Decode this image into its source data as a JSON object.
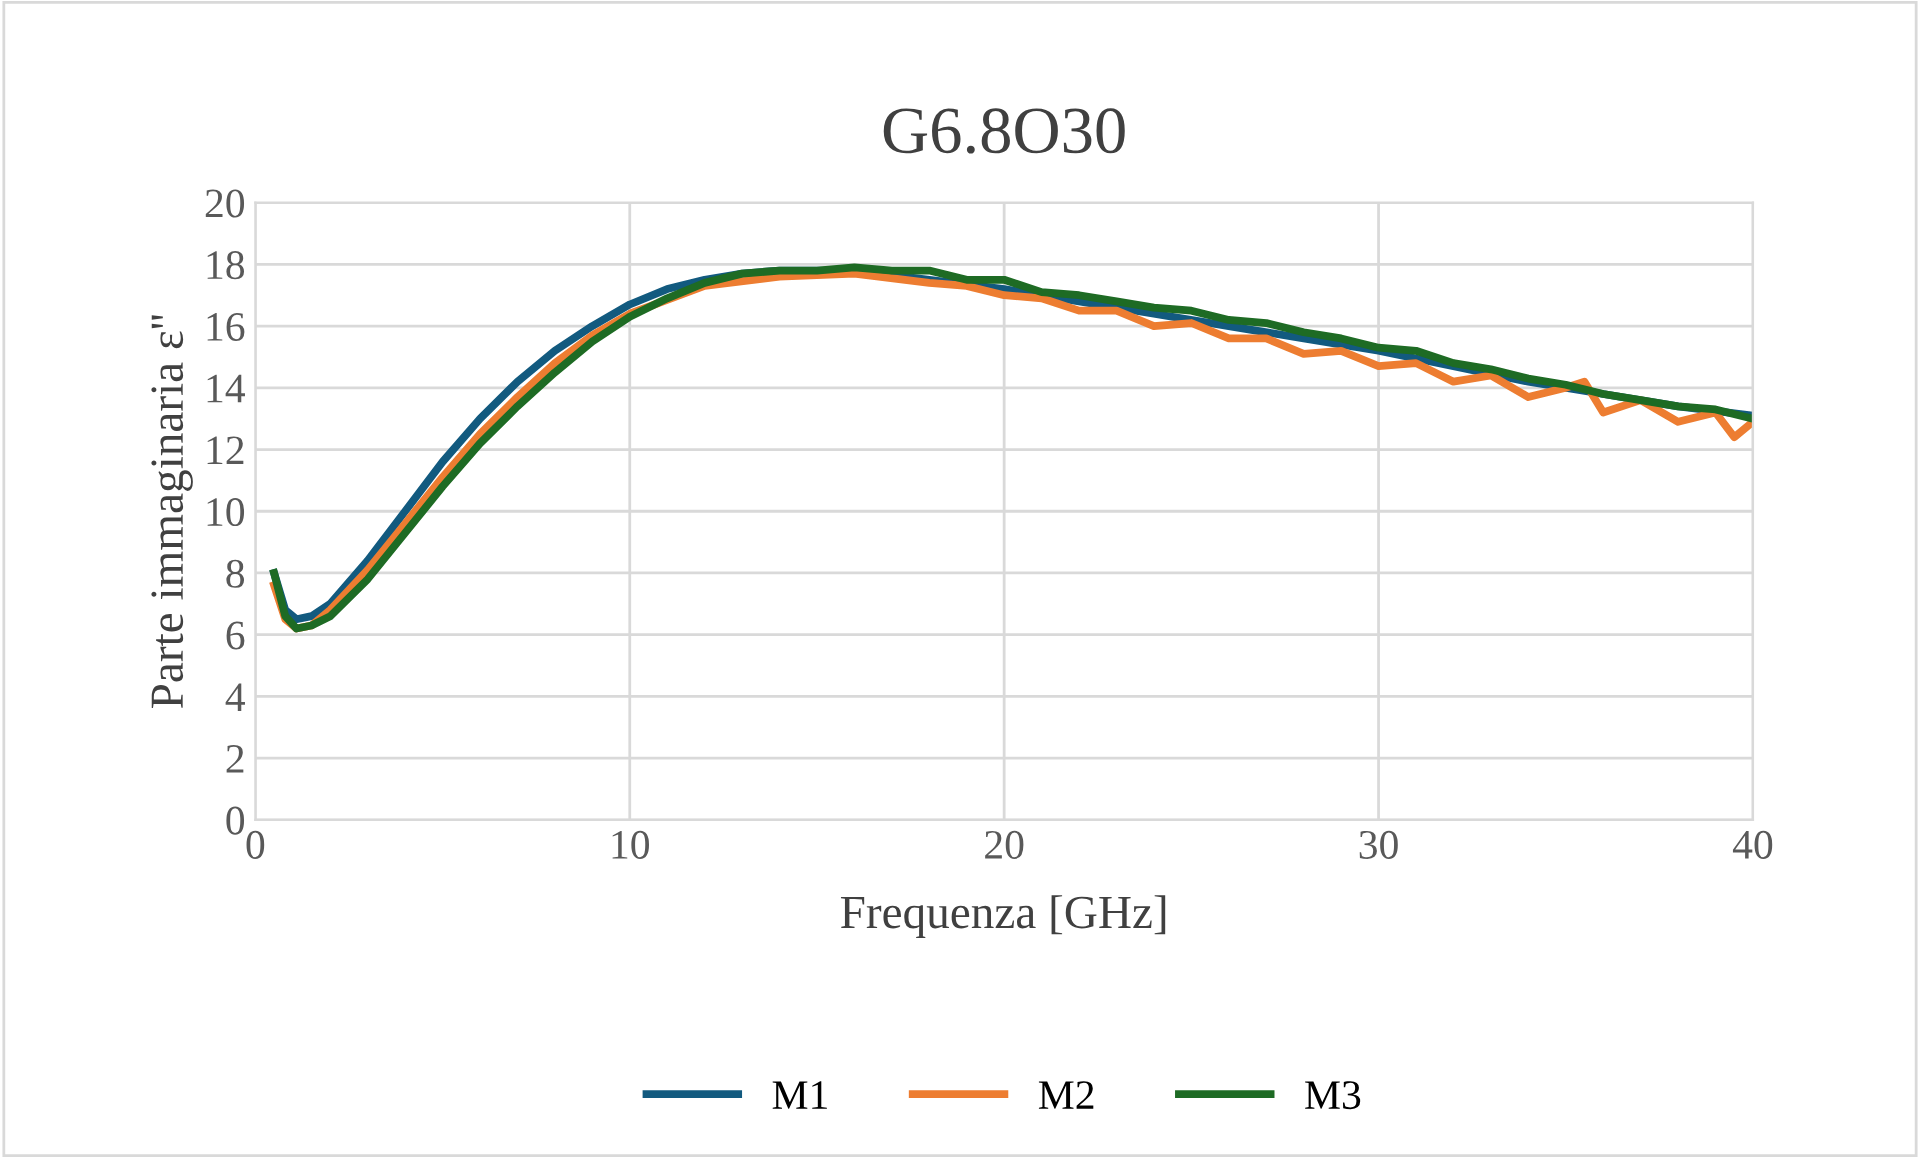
{
  "chart_data": {
    "type": "line",
    "title": "G6.8O30",
    "xlabel": "Frequenza [GHz]",
    "ylabel": "Parte immaginaria ε''",
    "xlim": [
      0,
      40
    ],
    "xticks": [
      0,
      10,
      20,
      30,
      40
    ],
    "ylim": [
      0,
      20
    ],
    "yticks": [
      0,
      2,
      4,
      6,
      8,
      10,
      12,
      14,
      16,
      18,
      20
    ],
    "grid": true,
    "legend": "bottom",
    "marker": "none",
    "line_style": "solid",
    "series": [
      {
        "name": "M1",
        "color": "#125a7f",
        "x": [
          0.5,
          0.8,
          1.1,
          1.5,
          2,
          3,
          4,
          5,
          6,
          7,
          8,
          9,
          10,
          11,
          12,
          13,
          14,
          16,
          18,
          20,
          22,
          24,
          26,
          28,
          30,
          32,
          34,
          36,
          38,
          40
        ],
        "values": [
          8.0,
          6.8,
          6.5,
          6.6,
          7.0,
          8.4,
          10.0,
          11.6,
          13.0,
          14.2,
          15.2,
          16.0,
          16.7,
          17.2,
          17.5,
          17.7,
          17.8,
          17.8,
          17.5,
          17.2,
          16.8,
          16.4,
          16.0,
          15.6,
          15.2,
          14.7,
          14.2,
          13.8,
          13.4,
          13.1
        ]
      },
      {
        "name": "M2",
        "color": "#ed7d31",
        "x": [
          0.5,
          0.8,
          1.1,
          1.5,
          2,
          3,
          4,
          5,
          6,
          7,
          8,
          9,
          10,
          12,
          14,
          16,
          18,
          19,
          20,
          21,
          22,
          23,
          24,
          25,
          26,
          27,
          28,
          29,
          30,
          31,
          32,
          33,
          34,
          35,
          35.5,
          36,
          37,
          38,
          39,
          39.5,
          40
        ],
        "values": [
          7.6,
          6.5,
          6.2,
          6.3,
          6.8,
          8.1,
          9.6,
          11.1,
          12.5,
          13.7,
          14.8,
          15.7,
          16.4,
          17.3,
          17.6,
          17.7,
          17.4,
          17.3,
          17.0,
          16.9,
          16.5,
          16.5,
          16.0,
          16.1,
          15.6,
          15.6,
          15.1,
          15.2,
          14.7,
          14.8,
          14.2,
          14.4,
          13.7,
          14.0,
          14.2,
          13.2,
          13.6,
          12.9,
          13.2,
          12.4,
          12.9
        ]
      },
      {
        "name": "M3",
        "color": "#1e6b24",
        "x": [
          0.5,
          0.8,
          1.1,
          1.5,
          2,
          3,
          4,
          5,
          6,
          7,
          8,
          9,
          10,
          11,
          12,
          13,
          14,
          15,
          16,
          17,
          18,
          19,
          20,
          21,
          22,
          23,
          24,
          25,
          26,
          27,
          28,
          29,
          30,
          31,
          32,
          33,
          34,
          35,
          36,
          37,
          38,
          39,
          40
        ],
        "values": [
          8.0,
          6.6,
          6.2,
          6.3,
          6.6,
          7.8,
          9.3,
          10.8,
          12.2,
          13.4,
          14.5,
          15.5,
          16.3,
          16.9,
          17.4,
          17.7,
          17.8,
          17.8,
          17.9,
          17.8,
          17.8,
          17.5,
          17.5,
          17.1,
          17.0,
          16.8,
          16.6,
          16.5,
          16.2,
          16.1,
          15.8,
          15.6,
          15.3,
          15.2,
          14.8,
          14.6,
          14.3,
          14.1,
          13.8,
          13.6,
          13.4,
          13.3,
          13.0
        ]
      }
    ]
  }
}
